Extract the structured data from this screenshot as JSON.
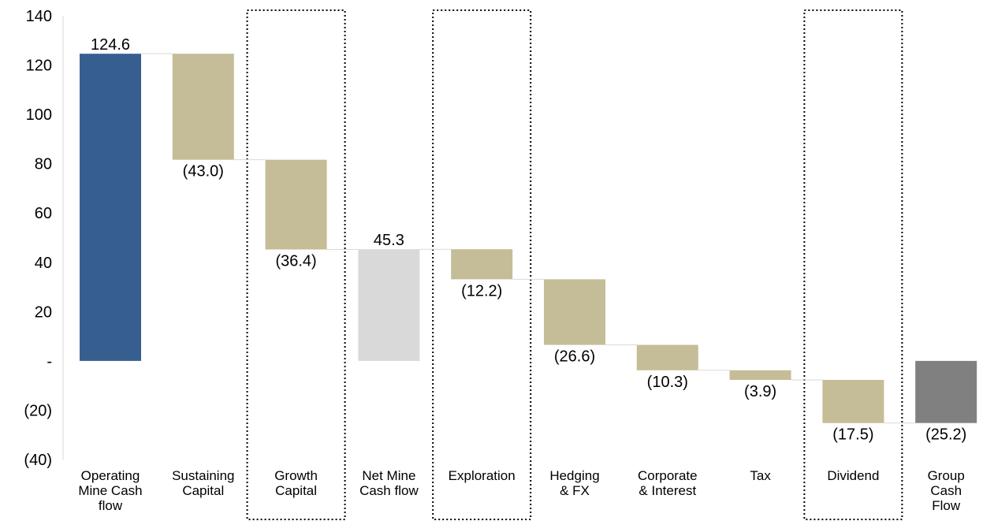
{
  "chart_data": {
    "type": "bar",
    "subtype": "waterfall",
    "title": "",
    "xlabel": "",
    "ylabel": "",
    "ylim": [
      -40,
      140
    ],
    "y_ticks": [
      {
        "value": 140,
        "label": "140"
      },
      {
        "value": 120,
        "label": "120"
      },
      {
        "value": 100,
        "label": "100"
      },
      {
        "value": 80,
        "label": "80"
      },
      {
        "value": 60,
        "label": "60"
      },
      {
        "value": 40,
        "label": "40"
      },
      {
        "value": 20,
        "label": "20"
      },
      {
        "value": 0,
        "label": "-"
      },
      {
        "value": -20,
        "label": "(20)"
      },
      {
        "value": -40,
        "label": "(40)"
      }
    ],
    "grid": false,
    "legend": "none",
    "categories": [
      "Operating Mine Cash flow",
      "Sustaining Capital",
      "Growth Capital",
      "Net Mine Cash flow",
      "Exploration",
      "Hedging & FX",
      "Corporate & Interest",
      "Tax",
      "Dividend",
      "Group Cash Flow"
    ],
    "category_lines": [
      [
        "Operating",
        "Mine Cash",
        "flow"
      ],
      [
        "Sustaining",
        "Capital"
      ],
      [
        "Growth",
        "Capital"
      ],
      [
        "Net Mine",
        "Cash flow"
      ],
      [
        "Exploration"
      ],
      [
        "Hedging",
        "& FX"
      ],
      [
        "Corporate",
        "& Interest"
      ],
      [
        "Tax"
      ],
      [
        "Dividend"
      ],
      [
        "Group",
        "Cash",
        "Flow"
      ]
    ],
    "values": [
      124.6,
      -43.0,
      -36.4,
      45.3,
      -12.2,
      -26.6,
      -10.3,
      -3.9,
      -17.5,
      -25.2
    ],
    "value_labels": [
      "124.6",
      "(43.0)",
      "(36.4)",
      "45.3",
      "(12.2)",
      "(26.6)",
      "(10.3)",
      "(3.9)",
      "(17.5)",
      "(25.2)"
    ],
    "bar_kind": [
      "total",
      "delta",
      "delta",
      "total",
      "delta",
      "delta",
      "delta",
      "delta",
      "delta",
      "total"
    ],
    "highlighted_categories": [
      "Growth Capital",
      "Exploration",
      "Dividend"
    ],
    "colors": {
      "Operating Mine Cash flow": "#365f8f",
      "Net Mine Cash flow": "#d9d9d9",
      "Group Cash Flow": "#808080",
      "delta": "#c4bd97",
      "connector": "#d9d9d9",
      "axis": "#d9d9d9",
      "highlight_box": "#000000"
    }
  }
}
